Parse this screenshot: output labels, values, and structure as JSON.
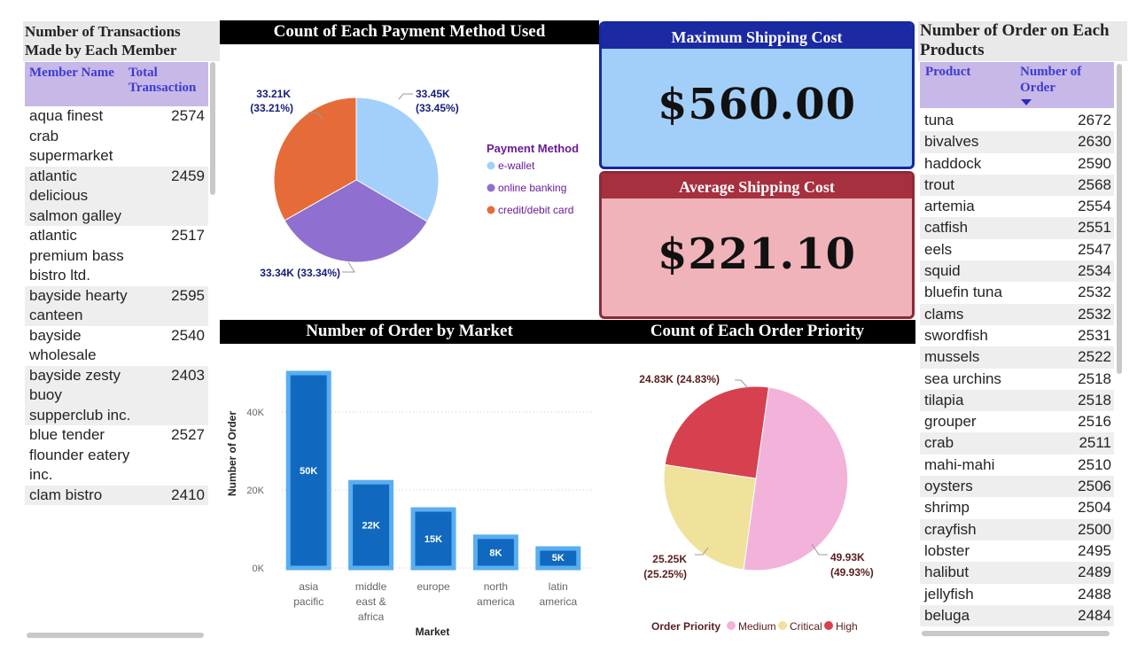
{
  "member_table": {
    "title": "Number of Transactions Made by Each Member",
    "col_member": "Member Name",
    "col_total": "Total Transaction",
    "rows": [
      {
        "name": "aqua finest crab supermarket",
        "value": "2574"
      },
      {
        "name": "atlantic delicious salmon galley",
        "value": "2459"
      },
      {
        "name": "atlantic premium bass bistro ltd.",
        "value": "2517"
      },
      {
        "name": "bayside hearty canteen",
        "value": "2595"
      },
      {
        "name": "bayside wholesale",
        "value": "2540"
      },
      {
        "name": "bayside zesty buoy supperclub inc.",
        "value": "2403"
      },
      {
        "name": "blue tender flounder eatery inc.",
        "value": "2527"
      },
      {
        "name": "clam bistro",
        "value": "2410"
      }
    ]
  },
  "payment_chart": {
    "title": "Count of Each Payment Method Used",
    "legend_title": "Payment Method",
    "label_ewallet_1": "33.45K",
    "label_ewallet_2": "(33.45%)",
    "label_online": "33.34K (33.34%)",
    "label_card_1": "33.21K",
    "label_card_2": "(33.21%)"
  },
  "max_shipping": {
    "title": "Maximum Shipping Cost",
    "value": "$560.00"
  },
  "avg_shipping": {
    "title": "Average Shipping Cost",
    "value": "$221.10"
  },
  "market_chart": {
    "title": "Number of Order by Market",
    "xlabel": "Market",
    "ylabel": "Number of Order",
    "ticks": [
      "0K",
      "20K",
      "40K"
    ]
  },
  "priority_chart": {
    "title": "Count of Each Order Priority",
    "legend_title": "Order Priority",
    "label_medium_1": "49.93K",
    "label_medium_2": "(49.93%)",
    "label_critical_1": "25.25K",
    "label_critical_2": "(25.25%)",
    "label_high": "24.83K (24.83%)"
  },
  "product_table": {
    "title": "Number of Order on Each Products",
    "col_product": "Product",
    "col_count": "Number of Order",
    "rows": [
      {
        "name": "tuna",
        "value": "2672"
      },
      {
        "name": "bivalves",
        "value": "2630"
      },
      {
        "name": "haddock",
        "value": "2590"
      },
      {
        "name": "trout",
        "value": "2568"
      },
      {
        "name": "artemia",
        "value": "2554"
      },
      {
        "name": "catfish",
        "value": "2551"
      },
      {
        "name": "eels",
        "value": "2547"
      },
      {
        "name": "squid",
        "value": "2534"
      },
      {
        "name": "bluefin tuna",
        "value": "2532"
      },
      {
        "name": "clams",
        "value": "2532"
      },
      {
        "name": "swordfish",
        "value": "2531"
      },
      {
        "name": "mussels",
        "value": "2522"
      },
      {
        "name": "sea urchins",
        "value": "2518"
      },
      {
        "name": "tilapia",
        "value": "2518"
      },
      {
        "name": "grouper",
        "value": "2516"
      },
      {
        "name": "crab",
        "value": "2511"
      },
      {
        "name": "mahi-mahi",
        "value": "2510"
      },
      {
        "name": "oysters",
        "value": "2506"
      },
      {
        "name": "shrimp",
        "value": "2504"
      },
      {
        "name": "crayfish",
        "value": "2500"
      },
      {
        "name": "lobster",
        "value": "2495"
      },
      {
        "name": "halibut",
        "value": "2489"
      },
      {
        "name": "jellyfish",
        "value": "2488"
      },
      {
        "name": "beluga",
        "value": "2484"
      }
    ]
  },
  "chart_data": [
    {
      "type": "pie",
      "title": "Count of Each Payment Method Used",
      "legend_title": "Payment Method",
      "legend_position": "right",
      "labels": [
        "e-wallet",
        "online banking",
        "credit/debit card"
      ],
      "values": [
        33450,
        33340,
        33210
      ],
      "percents": [
        33.45,
        33.34,
        33.21
      ],
      "colors": [
        "#a3d0fb",
        "#8f6fcf",
        "#e56c39"
      ]
    },
    {
      "type": "bar",
      "title": "Number of Order by Market",
      "xlabel": "Market",
      "ylabel": "Number of Order",
      "categories": [
        [
          "asia",
          "pacific"
        ],
        [
          "middle",
          "east &",
          "africa"
        ],
        [
          "europe"
        ],
        [
          "north",
          "america"
        ],
        [
          "latin",
          "america"
        ]
      ],
      "values": [
        50000,
        22000,
        15000,
        8000,
        5000
      ],
      "data_labels": [
        "50K",
        "22K",
        "15K",
        "8K",
        "5K"
      ],
      "ylim": [
        0,
        50000
      ],
      "grid": true,
      "colors": {
        "bar": "#1169bf",
        "bar_border": "#5aaef0"
      }
    },
    {
      "type": "pie",
      "title": "Count of Each Order Priority",
      "legend_title": "Order Priority",
      "legend_position": "bottom",
      "labels": [
        "Medium",
        "Critical",
        "High"
      ],
      "values": [
        49930,
        25250,
        24830
      ],
      "percents": [
        49.93,
        25.25,
        24.83
      ],
      "colors": [
        "#f2b2da",
        "#f0e19b",
        "#d7414f"
      ]
    }
  ]
}
